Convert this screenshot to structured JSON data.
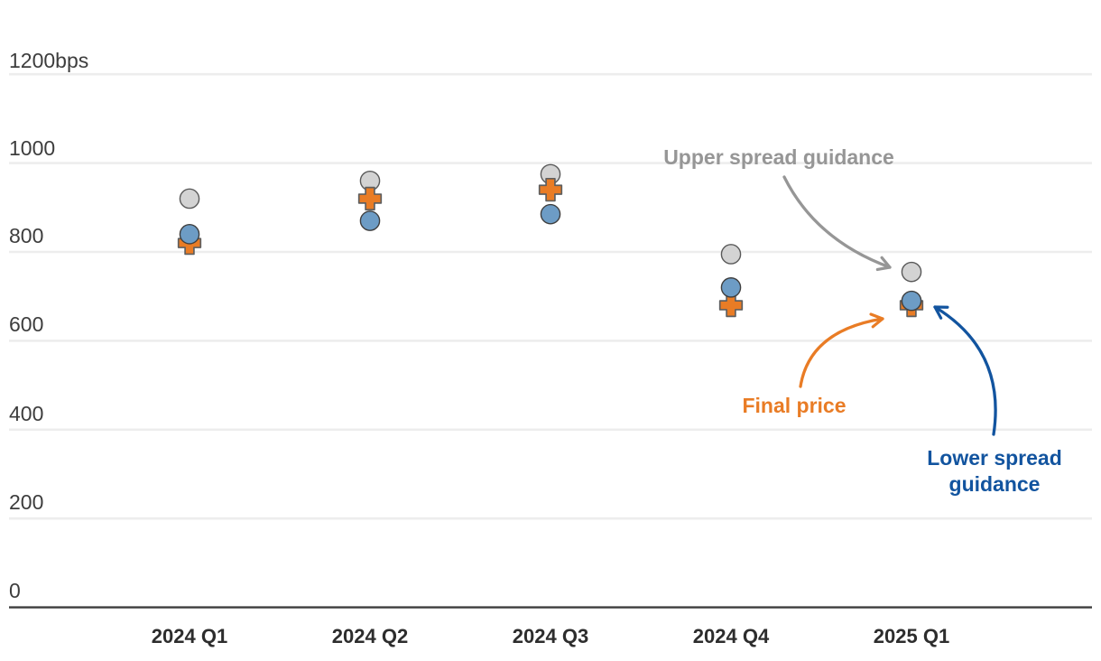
{
  "chart_data": {
    "type": "scatter",
    "title": "",
    "unit": "bps",
    "categories": [
      "2024 Q1",
      "2024 Q2",
      "2024 Q3",
      "2024 Q4",
      "2025 Q1"
    ],
    "series": [
      {
        "name": "Upper spread guidance",
        "marker": "circle",
        "fill": "#d3d3d3",
        "stroke": "#595959",
        "values": [
          920,
          960,
          975,
          795,
          755
        ]
      },
      {
        "name": "Final price",
        "marker": "plus",
        "fill": "#e97c25",
        "stroke": "#5f5f5f",
        "values": [
          820,
          920,
          940,
          680,
          680
        ]
      },
      {
        "name": "Lower spread guidance",
        "marker": "circle",
        "fill": "#6d9cc5",
        "stroke": "#3f3f3f",
        "values": [
          840,
          870,
          885,
          720,
          690
        ]
      }
    ],
    "ylim": [
      0,
      1200
    ],
    "yticks": [
      {
        "value": 1200,
        "label": "1200bps"
      },
      {
        "value": 1000,
        "label": "1000"
      },
      {
        "value": 800,
        "label": "800"
      },
      {
        "value": 600,
        "label": "600"
      },
      {
        "value": 400,
        "label": "400"
      },
      {
        "value": 200,
        "label": "200"
      },
      {
        "value": 0,
        "label": "0"
      }
    ],
    "grid": true,
    "legend_position": "none",
    "axis_colors": {
      "grid_color": "#ededed",
      "zero_line_color": "#3d3d3d",
      "tick_label_color": "#3d3d3d",
      "category_label_color": "#2d2d2d"
    },
    "annotations": [
      {
        "id": "upper",
        "text": "Upper spread guidance",
        "color": "#969696",
        "points_to": {
          "category": "2025 Q1",
          "series": "Upper spread guidance"
        }
      },
      {
        "id": "final",
        "text": "Final price",
        "color": "#e97c25",
        "points_to": {
          "category": "2025 Q1",
          "series": "Final price"
        }
      },
      {
        "id": "lower",
        "text": "Lower spread guidance",
        "lines": [
          "Lower spread",
          "guidance"
        ],
        "color": "#12549f",
        "points_to": {
          "category": "2025 Q1",
          "series": "Lower spread guidance"
        }
      }
    ]
  }
}
